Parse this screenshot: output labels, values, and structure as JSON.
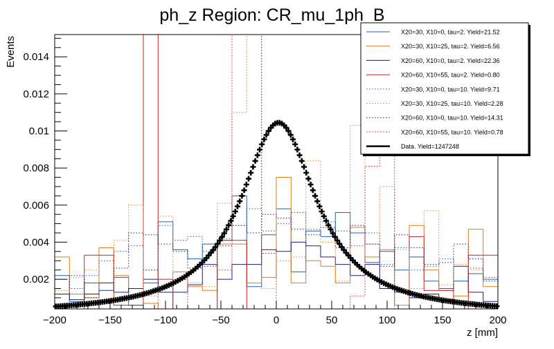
{
  "chart_data": {
    "type": "line",
    "title": "ph_z Region: CR_mu_1ph_B",
    "xlabel": "z [mm]",
    "ylabel": "Events",
    "xlim": [
      -200,
      200
    ],
    "ylim": [
      0.0004,
      0.0152
    ],
    "x_ticks": [
      -200,
      -150,
      -100,
      -50,
      0,
      50,
      100,
      150,
      200
    ],
    "x_tick_labels": [
      "−200",
      "−150",
      "−100",
      "−50",
      "0",
      "50",
      "100",
      "150",
      "200"
    ],
    "y_ticks": [
      0.002,
      0.004,
      0.006,
      0.008,
      0.01,
      0.012,
      0.014
    ],
    "y_tick_labels": [
      "0.002",
      "0.004",
      "0.006",
      "0.008",
      "0.01",
      "0.012",
      "0.014"
    ],
    "grid": false,
    "legend_position": "top-right",
    "bin_edges": [
      -200,
      -186.67,
      -173.33,
      -160,
      -146.67,
      -133.33,
      -120,
      -106.67,
      -93.33,
      -80,
      -66.67,
      -53.33,
      -40,
      -26.67,
      -13.33,
      0,
      13.33,
      26.67,
      40,
      53.33,
      66.67,
      80,
      93.33,
      106.67,
      120,
      133.33,
      146.67,
      160,
      173.33,
      186.67,
      200
    ],
    "series": [
      {
        "name": "X20=30, X10=0, tau=2. Yield=21.52",
        "color": "#1f5fa8",
        "style": "solid",
        "values": [
          0.0022,
          0.0008,
          0.0018,
          0.0014,
          0.0021,
          0.0006,
          0.0018,
          0.0051,
          0.0036,
          0.0031,
          0.0039,
          0.0041,
          0.0065,
          0.0016,
          0.0044,
          0.0058,
          0.0024,
          0.0046,
          0.0043,
          0.0056,
          0.0045,
          0.0029,
          0.0035,
          0.0025,
          0.0032,
          0.0019,
          0.0015,
          0.0019,
          0.0023,
          0.002
        ]
      },
      {
        "name": "X20=30, X10=25, tau=2. Yield=6.56",
        "color": "#e07a1f",
        "style": "solid",
        "values": [
          0.0032,
          0.0012,
          0.001,
          0.0037,
          0.0022,
          0.0015,
          0.0007,
          0.0003,
          0.0024,
          0.0016,
          0.0014,
          0.0039,
          0.0039,
          0.0018,
          0.0021,
          0.0075,
          0.0018,
          0.003,
          0.0027,
          0.0018,
          0.0048,
          0.0032,
          0.0036,
          0.0006,
          0.0049,
          0.0025,
          0.0014,
          0.0011,
          0.0047,
          0.0016
        ]
      },
      {
        "name": "X20=60, X10=0, tau=2. Yield=22.36",
        "color": "#1a1a80",
        "style": "solid",
        "values": [
          0.0012,
          0.0009,
          0.0012,
          0.0018,
          0.0013,
          0.0015,
          0.002,
          0.0013,
          0.0013,
          0.0017,
          0.0028,
          0.002,
          0.0028,
          0.0028,
          0.0036,
          0.0035,
          0.004,
          0.0038,
          0.0032,
          0.0028,
          0.0022,
          0.0028,
          0.0015,
          0.0013,
          0.001,
          0.0012,
          0.0009,
          0.0027,
          0.0013,
          0.0008
        ]
      },
      {
        "name": "X20=60, X10=55, tau=2. Yield=0.80",
        "color": "#c42020",
        "style": "solid",
        "values": [
          0.0004,
          0.0004,
          0.0033,
          0.0033,
          0.0006,
          0.0006,
          0.0152,
          0.002,
          0.0004,
          0.0004,
          0.0004,
          0.0041,
          0.0041,
          0.0004,
          0.0004,
          0.0004,
          0.0004,
          0.0004,
          0.0004,
          0.0004,
          0.0004,
          0.0004,
          0.0004,
          0.0004,
          0.0043,
          0.0014,
          0.0014,
          0.0004,
          0.0033,
          0.0033
        ]
      },
      {
        "name": "X20=30, X10=0, tau=10. Yield=9.71",
        "color": "#1f5fa8",
        "style": "dotted",
        "values": [
          0.002,
          0.0015,
          0.0022,
          0.003,
          0.0035,
          0.0038,
          0.0025,
          0.0049,
          0.0041,
          0.0043,
          0.0035,
          0.0042,
          0.0049,
          0.0058,
          0.0046,
          0.005,
          0.0056,
          0.0047,
          0.0051,
          0.0046,
          0.0038,
          0.0045,
          0.0028,
          0.0037,
          0.0025,
          0.0027,
          0.0031,
          0.0019,
          0.0026,
          0.0021
        ]
      },
      {
        "name": "X20=30, X10=25, tau=10. Yield=2.28",
        "color": "#e07a1f",
        "style": "dotted",
        "values": [
          0.0014,
          0.0021,
          0.0025,
          0.0008,
          0.0041,
          0.006,
          0.0011,
          0.0054,
          0.0024,
          0.0018,
          0.0016,
          0.0061,
          0.011,
          0.0152,
          0.0015,
          0.003,
          0.0032,
          0.0084,
          0.004,
          0.0019,
          0.0103,
          0.0039,
          0.007,
          0.0036,
          0.0015,
          0.0057,
          0.0017,
          0.0028,
          0.0025,
          0.002
        ]
      },
      {
        "name": "X20=60, X10=0, tau=10. Yield=14.31",
        "color": "#1a1a80",
        "style": "dotted",
        "values": [
          0.0012,
          0.0022,
          0.001,
          0.0014,
          0.0026,
          0.0045,
          0.0044,
          0.0039,
          0.0035,
          0.0026,
          0.0027,
          0.0038,
          0.0049,
          0.0045,
          0.0055,
          0.0053,
          0.0047,
          0.0044,
          0.0048,
          0.0037,
          0.0049,
          0.0039,
          0.0027,
          0.0044,
          0.0037,
          0.0028,
          0.0029,
          0.0039,
          0.0031,
          0.0019
        ]
      },
      {
        "name": "X20=60, X10=55, tau=10. Yield=0.78",
        "color": "#c42020",
        "style": "dotted",
        "values": [
          0.0004,
          0.0004,
          0.0004,
          0.0004,
          0.0004,
          0.0004,
          0.0025,
          0.0004,
          0.002,
          0.0004,
          0.0004,
          0.0025,
          0.0152,
          0.0152,
          0.0034,
          0.0004,
          0.0004,
          0.0004,
          0.0004,
          0.0004,
          0.0011,
          0.0081,
          0.0152,
          0.0004,
          0.0004,
          0.0004,
          0.0004,
          0.0004,
          0.0004,
          0.0004
        ]
      },
      {
        "name": "Data. Yield=1247248",
        "color": "#000000",
        "style": "markers",
        "peak_x": 2,
        "peak_y": 0.01045,
        "gamma": 42,
        "baseline": 0.0001
      }
    ]
  }
}
